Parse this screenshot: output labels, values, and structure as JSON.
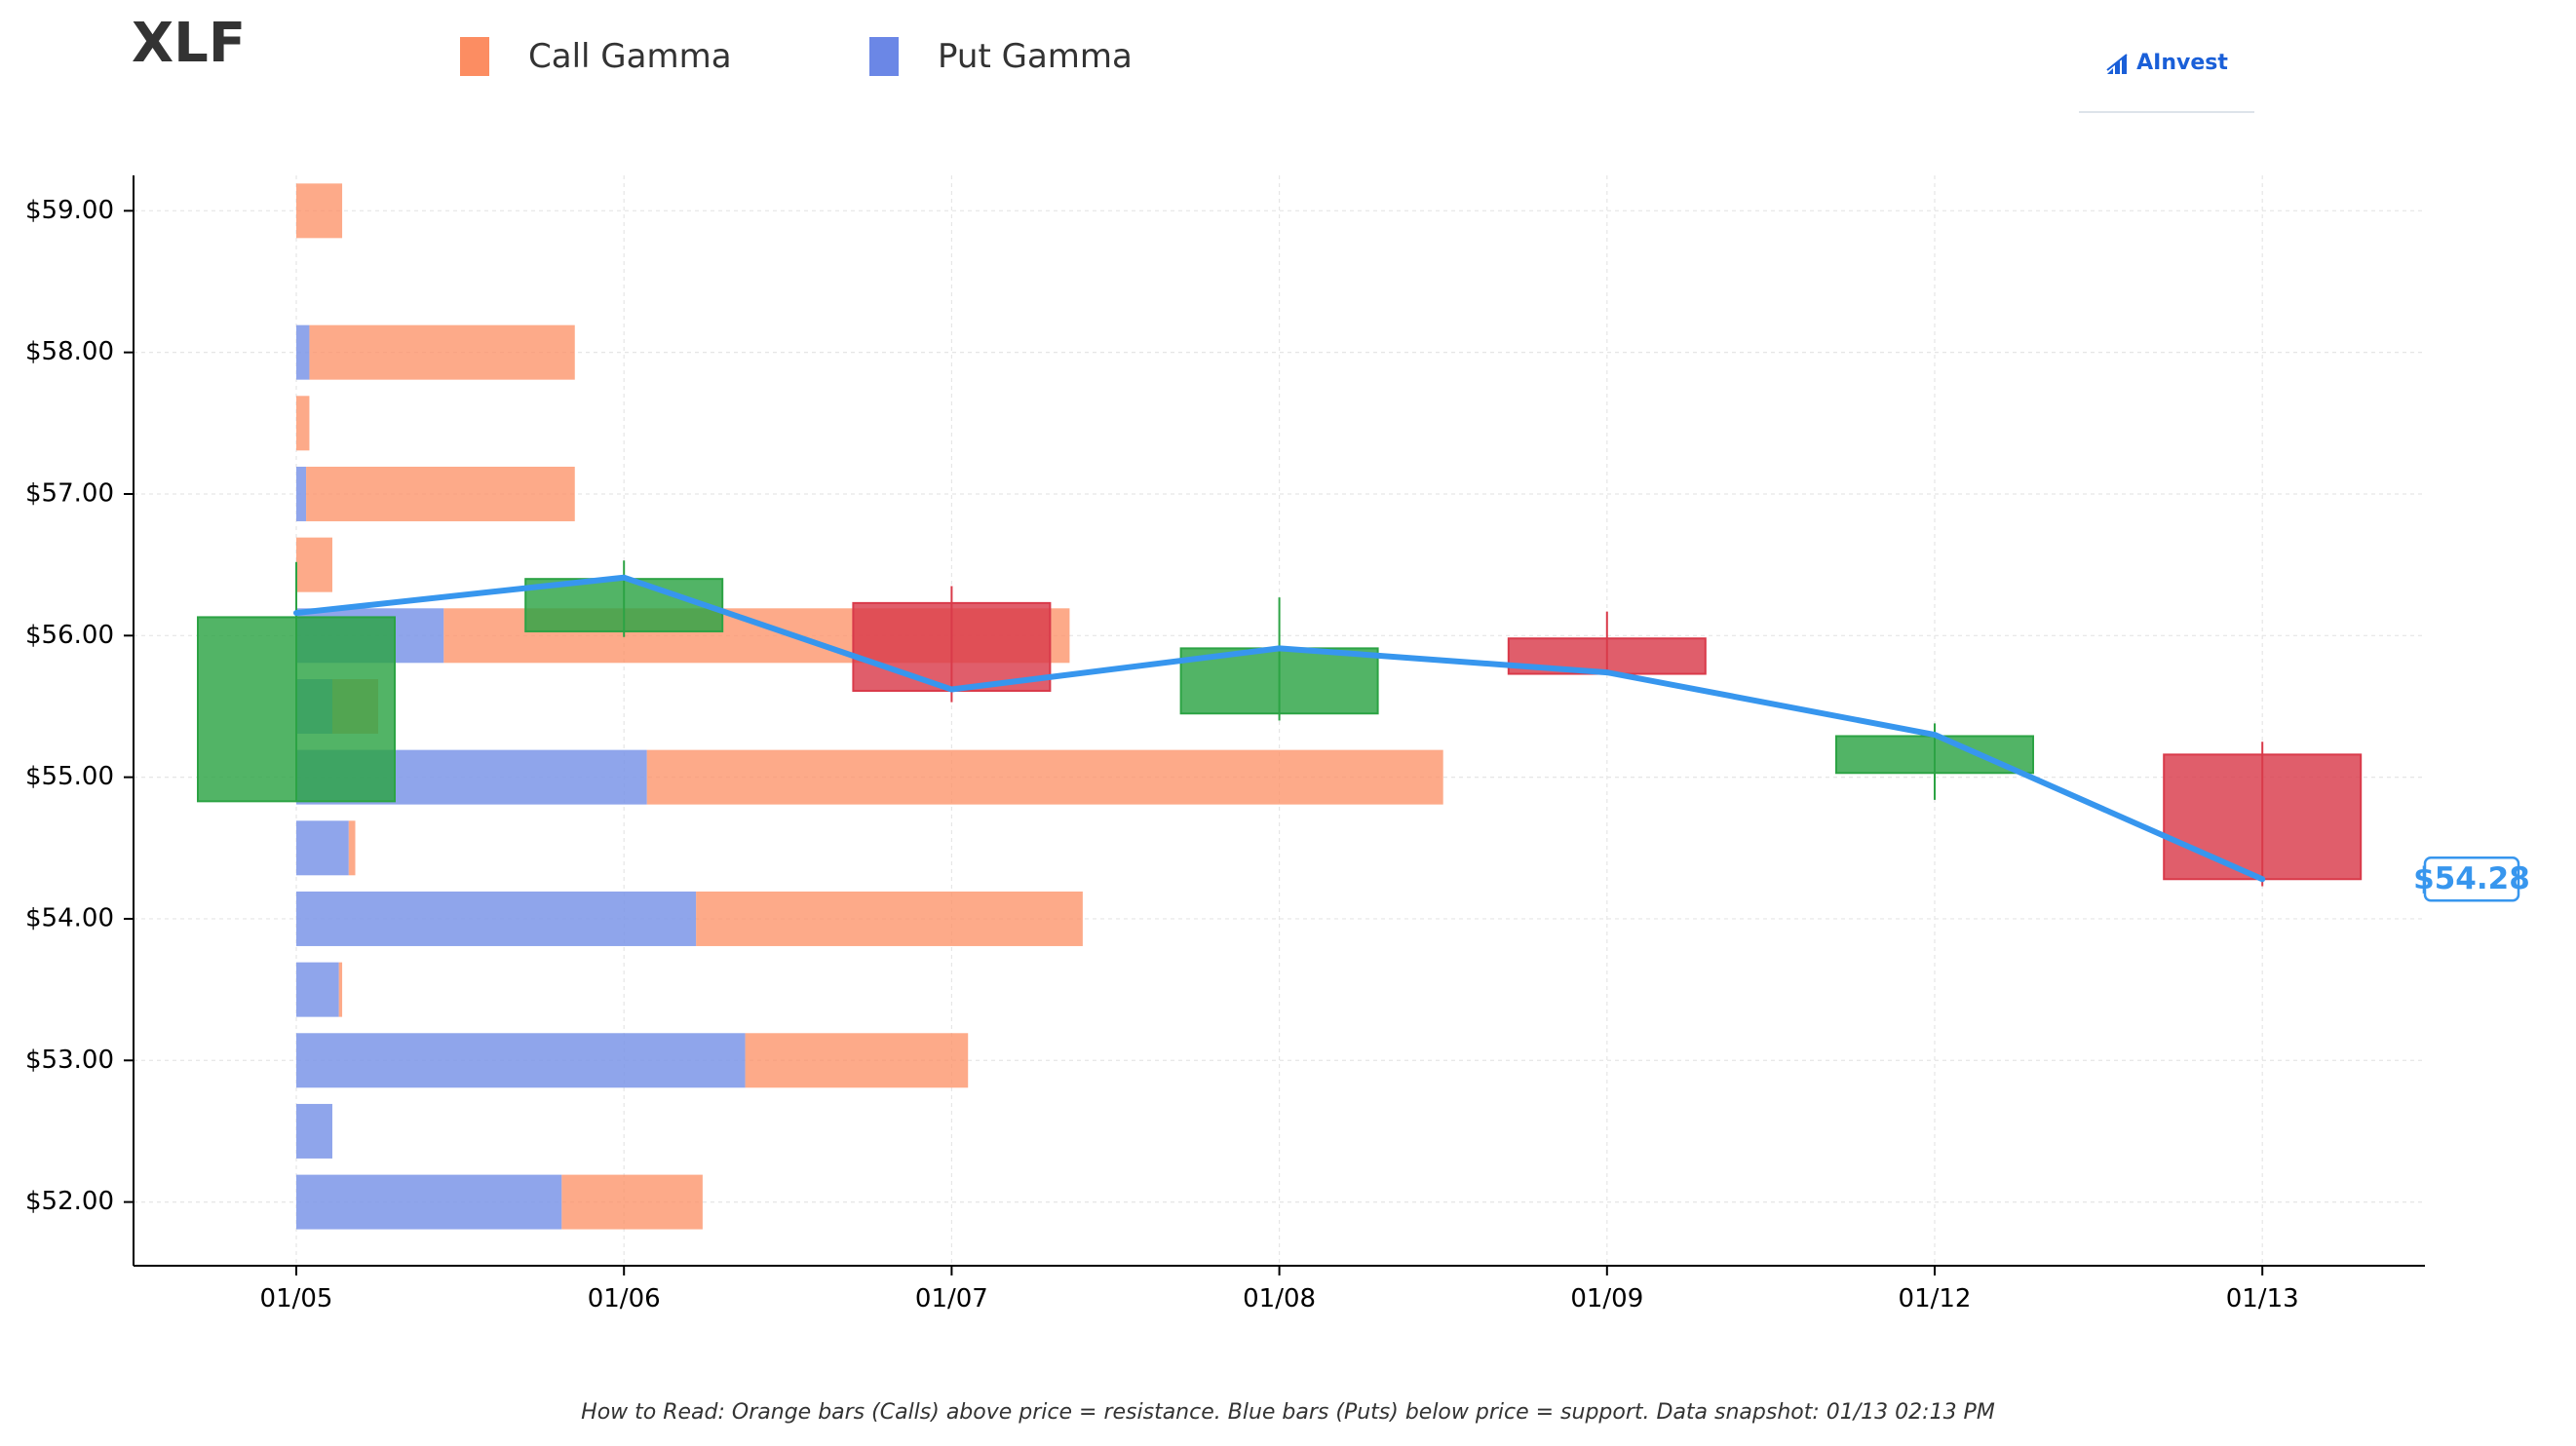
{
  "header": {
    "title": "XLF"
  },
  "legend": [
    {
      "label": "Call Gamma",
      "color": "#fc8d62"
    },
    {
      "label": "Put Gamma",
      "color": "#6b87e6"
    }
  ],
  "brand": {
    "name": "AInvest"
  },
  "footnote": "How to Read: Orange bars (Calls) above price = resistance. Blue bars (Puts) below price = support. Data snapshot: 01/13 02:13 PM",
  "colors": {
    "call": "#fc8d62",
    "put": "#7b95e8",
    "up": "#2ca344",
    "down": "#d93a4a",
    "price_line": "#3796ee",
    "grid": "#e6e6e6"
  },
  "chart_data": {
    "type": "candlestick+bar",
    "x_categories": [
      "01/05",
      "01/06",
      "01/07",
      "01/08",
      "01/09",
      "01/12",
      "01/13"
    ],
    "ylim": [
      51.55,
      59.25
    ],
    "y_ticks": [
      {
        "value": 52,
        "label": "$52.00"
      },
      {
        "value": 53,
        "label": "$53.00"
      },
      {
        "value": 54,
        "label": "$54.00"
      },
      {
        "value": 55,
        "label": "$55.00"
      },
      {
        "value": 56,
        "label": "$56.00"
      },
      {
        "value": 57,
        "label": "$57.00"
      },
      {
        "value": 58,
        "label": "$58.00"
      },
      {
        "value": 59,
        "label": "$59.00"
      }
    ],
    "grid": true,
    "gamma_max_bar_units": 3.5,
    "gamma_bars": [
      {
        "strike": 59.0,
        "put": 0.0,
        "call": 0.14
      },
      {
        "strike": 58.0,
        "put": 0.04,
        "call": 0.81
      },
      {
        "strike": 57.5,
        "put": 0.0,
        "call": 0.04
      },
      {
        "strike": 57.0,
        "put": 0.03,
        "call": 0.82
      },
      {
        "strike": 56.5,
        "put": 0.0,
        "call": 0.11
      },
      {
        "strike": 56.0,
        "put": 0.45,
        "call": 1.91
      },
      {
        "strike": 55.5,
        "put": 0.11,
        "call": 0.14
      },
      {
        "strike": 55.0,
        "put": 1.07,
        "call": 2.43
      },
      {
        "strike": 54.5,
        "put": 0.16,
        "call": 0.02
      },
      {
        "strike": 54.0,
        "put": 1.22,
        "call": 1.18
      },
      {
        "strike": 53.5,
        "put": 0.13,
        "call": 0.01
      },
      {
        "strike": 53.0,
        "put": 1.37,
        "call": 0.68
      },
      {
        "strike": 52.5,
        "put": 0.11,
        "call": 0.0
      },
      {
        "strike": 52.0,
        "put": 0.81,
        "call": 0.43
      }
    ],
    "candles": [
      {
        "date": "01/05",
        "open": 54.83,
        "close": 56.13,
        "high": 56.52,
        "low": 54.83
      },
      {
        "date": "01/06",
        "open": 56.03,
        "close": 56.4,
        "high": 56.53,
        "low": 55.99
      },
      {
        "date": "01/07",
        "open": 56.23,
        "close": 55.61,
        "high": 56.35,
        "low": 55.53
      },
      {
        "date": "01/08",
        "open": 55.45,
        "close": 55.91,
        "high": 56.27,
        "low": 55.4
      },
      {
        "date": "01/09",
        "open": 55.98,
        "close": 55.73,
        "high": 56.17,
        "low": 55.73
      },
      {
        "date": "01/12",
        "open": 55.03,
        "close": 55.29,
        "high": 55.38,
        "low": 54.84
      },
      {
        "date": "01/13",
        "open": 55.16,
        "close": 54.28,
        "high": 55.25,
        "low": 54.23
      }
    ],
    "price_line": [
      56.16,
      56.41,
      55.62,
      55.91,
      55.74,
      55.3,
      54.28
    ],
    "current_price_label": "$54.28"
  }
}
